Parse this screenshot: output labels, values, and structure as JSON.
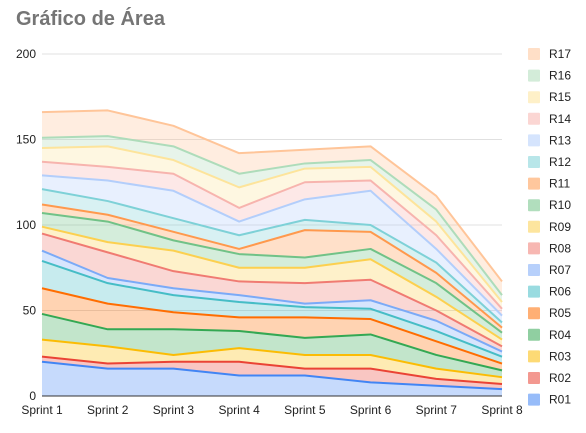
{
  "chart_data": {
    "type": "area",
    "stacked": true,
    "title": "Gráfico de Área",
    "xlabel": "",
    "ylabel": "",
    "ylim": [
      0,
      200
    ],
    "yticks": [
      "0",
      "50",
      "100",
      "150",
      "200"
    ],
    "grid": true,
    "legend_position": "right",
    "categories": [
      "Sprint 1",
      "Sprint 2",
      "Sprint 3",
      "Sprint 4",
      "Sprint 5",
      "Sprint 6",
      "Sprint 7",
      "Sprint 8"
    ],
    "series": [
      {
        "name": "R01",
        "color": "#4285f4",
        "values": [
          20,
          16,
          16,
          12,
          12,
          8,
          6,
          4
        ]
      },
      {
        "name": "R02",
        "color": "#ea4335",
        "values": [
          3,
          3,
          4,
          8,
          4,
          8,
          4,
          3
        ]
      },
      {
        "name": "R03",
        "color": "#fbbc04",
        "values": [
          10,
          10,
          4,
          8,
          8,
          8,
          6,
          4
        ]
      },
      {
        "name": "R04",
        "color": "#34a853",
        "values": [
          15,
          10,
          15,
          10,
          10,
          12,
          8,
          4
        ]
      },
      {
        "name": "R05",
        "color": "#ff6d01",
        "values": [
          15,
          15,
          10,
          8,
          12,
          9,
          8,
          4
        ]
      },
      {
        "name": "R06",
        "color": "#46bdc6",
        "values": [
          16,
          12,
          10,
          9,
          6,
          6,
          6,
          4
        ]
      },
      {
        "name": "R07",
        "color": "#7baaf7",
        "values": [
          6,
          3,
          4,
          4,
          2,
          5,
          6,
          3
        ]
      },
      {
        "name": "R08",
        "color": "#f07b72",
        "values": [
          10,
          15,
          10,
          8,
          12,
          12,
          6,
          3
        ]
      },
      {
        "name": "R09",
        "color": "#fcd04f",
        "values": [
          4,
          6,
          12,
          8,
          9,
          12,
          8,
          4
        ]
      },
      {
        "name": "R10",
        "color": "#71c287",
        "values": [
          8,
          12,
          6,
          8,
          6,
          6,
          8,
          4
        ]
      },
      {
        "name": "R11",
        "color": "#ff994d",
        "values": [
          5,
          4,
          5,
          3,
          16,
          10,
          6,
          3
        ]
      },
      {
        "name": "R12",
        "color": "#7ed1d7",
        "values": [
          9,
          8,
          8,
          8,
          6,
          4,
          6,
          3
        ]
      },
      {
        "name": "R13",
        "color": "#b3cefb",
        "values": [
          8,
          12,
          16,
          8,
          12,
          20,
          8,
          4
        ]
      },
      {
        "name": "R14",
        "color": "#f7b4ae",
        "values": [
          8,
          8,
          10,
          8,
          10,
          6,
          8,
          4
        ]
      },
      {
        "name": "R15",
        "color": "#fde49b",
        "values": [
          8,
          12,
          8,
          12,
          8,
          8,
          8,
          4
        ]
      },
      {
        "name": "R16",
        "color": "#aedcba",
        "values": [
          6,
          6,
          8,
          8,
          3,
          4,
          7,
          4
        ]
      },
      {
        "name": "R17",
        "color": "#ffc599",
        "values": [
          15,
          15,
          12,
          12,
          8,
          8,
          8,
          8
        ]
      }
    ]
  }
}
